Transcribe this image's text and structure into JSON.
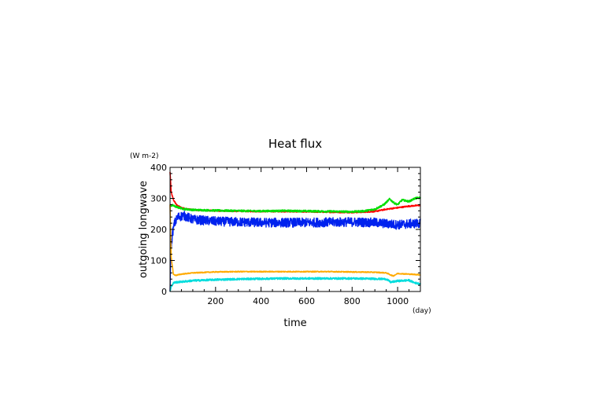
{
  "chart_data": {
    "type": "line",
    "title": "Heat flux",
    "xlabel": "time",
    "ylabel": "outgoing longwave",
    "x_unit": "(day)",
    "y_unit": "(W m-2)",
    "xlim": [
      0,
      1100
    ],
    "ylim": [
      0,
      400
    ],
    "x_ticks": [
      200,
      400,
      600,
      800,
      1000
    ],
    "y_ticks": [
      0,
      100,
      200,
      300,
      400
    ],
    "grid": false,
    "legend": "none",
    "series": [
      {
        "color": "#ff0000",
        "x": [
          0,
          5,
          15,
          30,
          50,
          80,
          120,
          200,
          300,
          400,
          500,
          600,
          700,
          800,
          850,
          900,
          950,
          1000,
          1050,
          1100
        ],
        "y": [
          385,
          320,
          295,
          278,
          270,
          265,
          262,
          260,
          259,
          258,
          258,
          257,
          256,
          255,
          256,
          258,
          265,
          270,
          275,
          278
        ],
        "noise": 2
      },
      {
        "color": "#00dd00",
        "x": [
          0,
          10,
          30,
          60,
          100,
          200,
          300,
          400,
          500,
          600,
          700,
          800,
          850,
          900,
          940,
          965,
          985,
          1000,
          1020,
          1050,
          1075,
          1100
        ],
        "y": [
          275,
          278,
          272,
          266,
          263,
          261,
          260,
          259,
          260,
          259,
          258,
          257,
          259,
          265,
          280,
          298,
          285,
          280,
          295,
          290,
          300,
          302
        ],
        "noise": 3
      },
      {
        "color": "#0022ee",
        "x": [
          0,
          3,
          10,
          20,
          35,
          60,
          100,
          200,
          300,
          400,
          500,
          600,
          700,
          800,
          900,
          1000,
          1050,
          1100
        ],
        "y": [
          0,
          120,
          185,
          220,
          240,
          245,
          232,
          226,
          224,
          222,
          222,
          222,
          223,
          224,
          222,
          215,
          218,
          220
        ],
        "noise": 15
      },
      {
        "color": "#ffaa00",
        "x": [
          0,
          5,
          15,
          25,
          50,
          100,
          200,
          300,
          400,
          500,
          600,
          700,
          800,
          900,
          950,
          980,
          1000,
          1050,
          1100
        ],
        "y": [
          280,
          110,
          55,
          52,
          56,
          60,
          63,
          64,
          64,
          64,
          64,
          64,
          63,
          62,
          60,
          50,
          58,
          56,
          54
        ],
        "noise": 1.5
      },
      {
        "color": "#00dddd",
        "x": [
          0,
          5,
          15,
          30,
          60,
          100,
          200,
          300,
          400,
          500,
          600,
          700,
          800,
          900,
          950,
          970,
          1000,
          1050,
          1075,
          1100
        ],
        "y": [
          0,
          15,
          28,
          30,
          32,
          35,
          38,
          40,
          41,
          42,
          42,
          42,
          42,
          41,
          40,
          30,
          34,
          36,
          28,
          25
        ],
        "noise": 3
      }
    ]
  }
}
